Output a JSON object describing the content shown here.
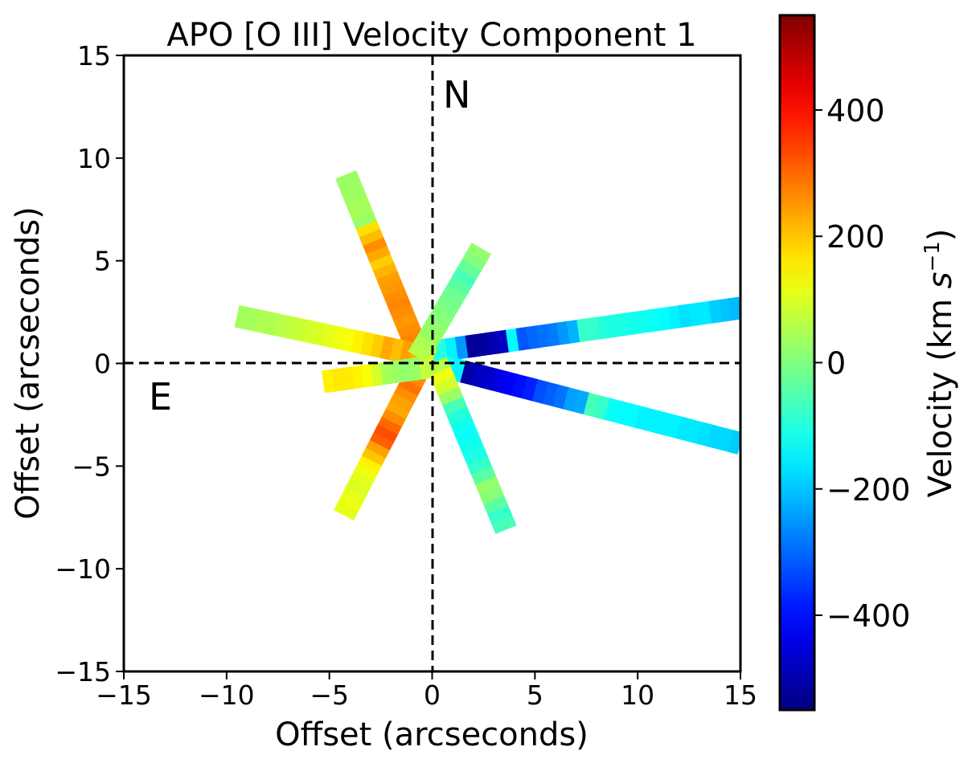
{
  "chart_data": {
    "type": "heatmap",
    "title": "APO [O III] Velocity Component 1",
    "xlabel": "Offset (arcseconds)",
    "ylabel": "Offset (arcseconds)",
    "xlim": [
      -15,
      15
    ],
    "ylim": [
      -15,
      15
    ],
    "x_ticks": [
      -15,
      -10,
      -5,
      0,
      5,
      10,
      15
    ],
    "y_ticks": [
      -15,
      -10,
      -5,
      0,
      5,
      10,
      15
    ],
    "x_tick_labels": [
      "−15",
      "−10",
      "−5",
      "0",
      "5",
      "10",
      "15"
    ],
    "y_tick_labels": [
      "−15",
      "−10",
      "−5",
      "0",
      "5",
      "10",
      "15"
    ],
    "annotations": {
      "north": "N",
      "east": "E"
    },
    "colorbar": {
      "label": "Velocity (km s⁻¹)",
      "colormap": "jet",
      "vmin": -550,
      "vmax": 550,
      "ticks": [
        -400,
        -200,
        0,
        200,
        400
      ],
      "tick_labels": [
        "−400",
        "−200",
        "0",
        "200",
        "400"
      ]
    },
    "slits": [
      {
        "name": "slit-1",
        "start": [
          -4.2,
          9.2
        ],
        "end": [
          -0.2,
          -0.6
        ],
        "velocities": [
          30,
          30,
          30,
          40,
          40,
          30,
          170,
          210,
          260,
          230,
          190,
          220,
          240,
          250,
          260,
          270,
          260,
          250,
          260,
          270,
          290,
          280,
          260,
          250
        ]
      },
      {
        "name": "slit-2",
        "start": [
          -0.4,
          0.2
        ],
        "end": [
          -4.3,
          -7.4
        ],
        "velocities": [
          120,
          200,
          260,
          290,
          260,
          240,
          230,
          260,
          300,
          330,
          310,
          240,
          200,
          150,
          120,
          110,
          100,
          110,
          120,
          110
        ]
      },
      {
        "name": "slit-3",
        "start": [
          -9.5,
          2.3
        ],
        "end": [
          0.4,
          0.2
        ],
        "velocities": [
          40,
          40,
          50,
          50,
          60,
          70,
          80,
          90,
          100,
          110,
          120,
          130,
          150,
          170,
          190,
          230,
          210,
          240,
          220,
          170,
          110
        ]
      },
      {
        "name": "slit-4",
        "start": [
          0.2,
          0.6
        ],
        "end": [
          15,
          2.7
        ],
        "velocities": [
          -100,
          -150,
          -250,
          -520,
          -520,
          -500,
          -480,
          -140,
          -320,
          -300,
          -290,
          -280,
          -250,
          -220,
          -80,
          -80,
          -100,
          -110,
          -110,
          -120,
          -120,
          -130,
          -140,
          -150,
          -170,
          -160,
          -160,
          -190,
          -200,
          -210
        ]
      },
      {
        "name": "slit-5",
        "start": [
          -5.3,
          -0.9
        ],
        "end": [
          0.4,
          -0.1
        ],
        "velocities": [
          150,
          160,
          160,
          150,
          130,
          90,
          40,
          30,
          20,
          30,
          80,
          150
        ]
      },
      {
        "name": "slit-6",
        "start": [
          0.0,
          0.0
        ],
        "end": [
          15,
          -3.9
        ],
        "velocities": [
          -100,
          -120,
          -150,
          -510,
          -480,
          -470,
          -440,
          -420,
          -400,
          -380,
          -330,
          -310,
          -290,
          -240,
          -230,
          -60,
          -80,
          -130,
          -140,
          -140,
          -150,
          -150,
          -150,
          -150,
          -160,
          -160,
          -170,
          -180,
          -180,
          -190
        ]
      },
      {
        "name": "slit-7",
        "start": [
          -0.7,
          0.3
        ],
        "end": [
          2.4,
          5.6
        ],
        "velocities": [
          60,
          50,
          30,
          20,
          10,
          0,
          -10,
          -20,
          -40,
          -60,
          -30,
          0,
          20
        ]
      },
      {
        "name": "slit-8",
        "start": [
          0.2,
          0.1
        ],
        "end": [
          3.6,
          -8.1
        ],
        "velocities": [
          60,
          120,
          90,
          30,
          -60,
          -100,
          -120,
          -130,
          -120,
          -110,
          -80,
          -40,
          20,
          10,
          -40,
          -80,
          -60
        ]
      }
    ]
  }
}
